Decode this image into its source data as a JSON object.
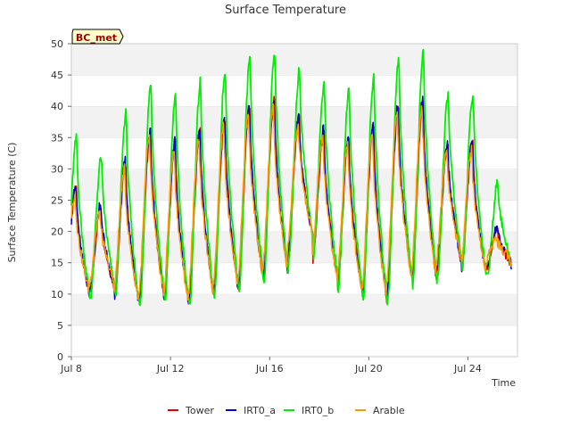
{
  "chart_data": {
    "type": "line",
    "title": "Surface Temperature",
    "xlabel": "Time",
    "ylabel": "Surface Temperature (C)",
    "badge": "BC_met",
    "ylim": [
      0,
      50
    ],
    "y_ticks": [
      "0",
      "5",
      "10",
      "15",
      "20",
      "25",
      "30",
      "35",
      "40",
      "45",
      "50"
    ],
    "xlim": [
      "Jul 8",
      "Jul 26"
    ],
    "x_ticks": [
      "Jul 8",
      "Jul 12",
      "Jul 16",
      "Jul 20",
      "Jul 24"
    ],
    "grid": "horizontal bands",
    "legend_position": "bottom",
    "days": [
      {
        "day": "Jul 8",
        "min": 9.5,
        "max": 27
      },
      {
        "day": "Jul 9",
        "min": 11,
        "max": 24
      },
      {
        "day": "Jul 10",
        "min": 8,
        "max": 31
      },
      {
        "day": "Jul 11",
        "min": 9.5,
        "max": 36
      },
      {
        "day": "Jul 12",
        "min": 8,
        "max": 34
      },
      {
        "day": "Jul 13",
        "min": 9.5,
        "max": 36
      },
      {
        "day": "Jul 14",
        "min": 10.5,
        "max": 38
      },
      {
        "day": "Jul 15",
        "min": 12,
        "max": 40
      },
      {
        "day": "Jul 16",
        "min": 13,
        "max": 41
      },
      {
        "day": "Jul 17",
        "min": 19,
        "max": 38
      },
      {
        "day": "Jul 18",
        "min": 12,
        "max": 36
      },
      {
        "day": "Jul 19",
        "min": 10,
        "max": 35
      },
      {
        "day": "Jul 20",
        "min": 8.5,
        "max": 37
      },
      {
        "day": "Jul 21",
        "min": 12,
        "max": 40
      },
      {
        "day": "Jul 22",
        "min": 12,
        "max": 41
      },
      {
        "day": "Jul 23",
        "min": 15,
        "max": 34
      },
      {
        "day": "Jul 24",
        "min": 13,
        "max": 34
      },
      {
        "day": "Jul 25",
        "min": 15,
        "max": 20
      }
    ],
    "series": [
      {
        "name": "Tower",
        "color": "#e00000",
        "max_offset": 0,
        "min_offset": 0,
        "phase": 0
      },
      {
        "name": "IRT0_a",
        "color": "#0000cc",
        "max_offset": 0.5,
        "min_offset": 0.5,
        "phase": 0.01
      },
      {
        "name": "IRT0_b",
        "color": "#00ee00",
        "max_offset": 8,
        "min_offset": -1.5,
        "phase": -0.02
      },
      {
        "name": "Arable",
        "color": "#ff9900",
        "max_offset": -1,
        "min_offset": 2.5,
        "phase": 0.04
      }
    ]
  }
}
